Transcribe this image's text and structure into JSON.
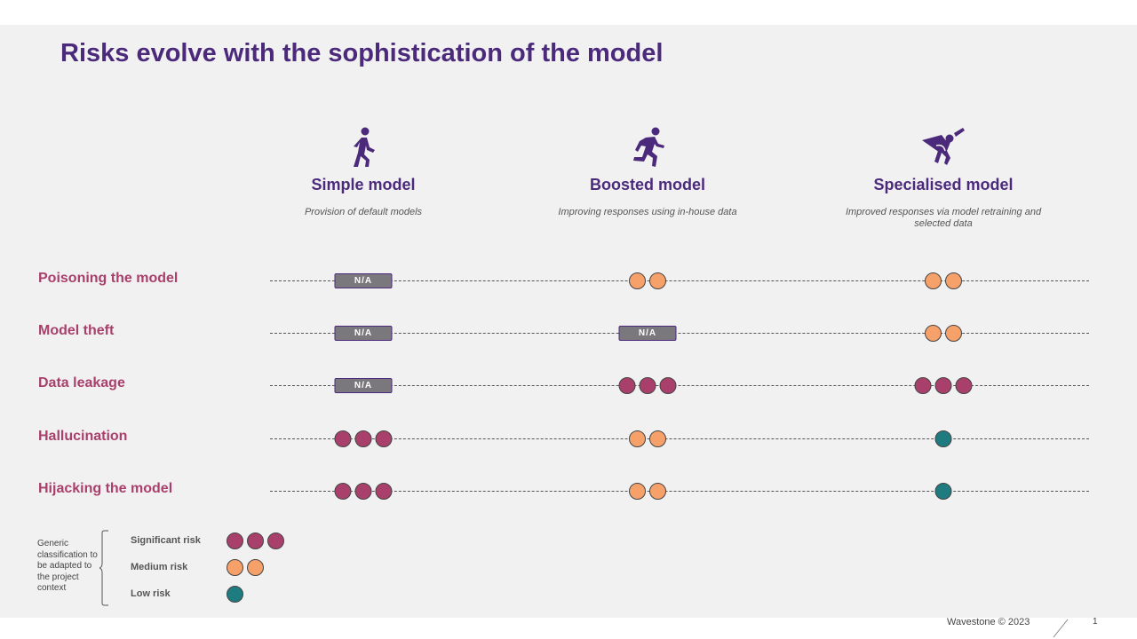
{
  "title": "Risks evolve with the sophistication of the model",
  "columns": [
    {
      "name": "Simple model",
      "description": "Provision of default models",
      "icon": "walking-person-icon"
    },
    {
      "name": "Boosted model",
      "description": "Improving responses using in-house data",
      "icon": "running-person-icon"
    },
    {
      "name": "Specialised model",
      "description": "Improved responses via model retraining and selected data",
      "icon": "flying-superhero-icon"
    }
  ],
  "rows": [
    {
      "label": "Poisoning the model",
      "cells": [
        "N/A",
        "medium",
        "medium"
      ]
    },
    {
      "label": "Model theft",
      "cells": [
        "N/A",
        "N/A",
        "medium"
      ]
    },
    {
      "label": "Data leakage",
      "cells": [
        "N/A",
        "significant",
        "significant"
      ]
    },
    {
      "label": "Hallucination",
      "cells": [
        "significant",
        "medium",
        "low"
      ]
    },
    {
      "label": "Hijacking the model",
      "cells": [
        "significant",
        "medium",
        "low"
      ]
    }
  ],
  "na_label": "N/A",
  "legend": {
    "note": "Generic classification to be adapted to the project context",
    "items": [
      {
        "label": "Significant risk",
        "level": "significant"
      },
      {
        "label": "Medium risk",
        "level": "medium"
      },
      {
        "label": "Low risk",
        "level": "low"
      }
    ]
  },
  "colors": {
    "significant": "#a8406b",
    "medium": "#f6a06a",
    "low": "#1e7b7f",
    "title": "#4b2a7b"
  },
  "footer": {
    "copyright": "Wavestone © 2023",
    "page": "1"
  }
}
